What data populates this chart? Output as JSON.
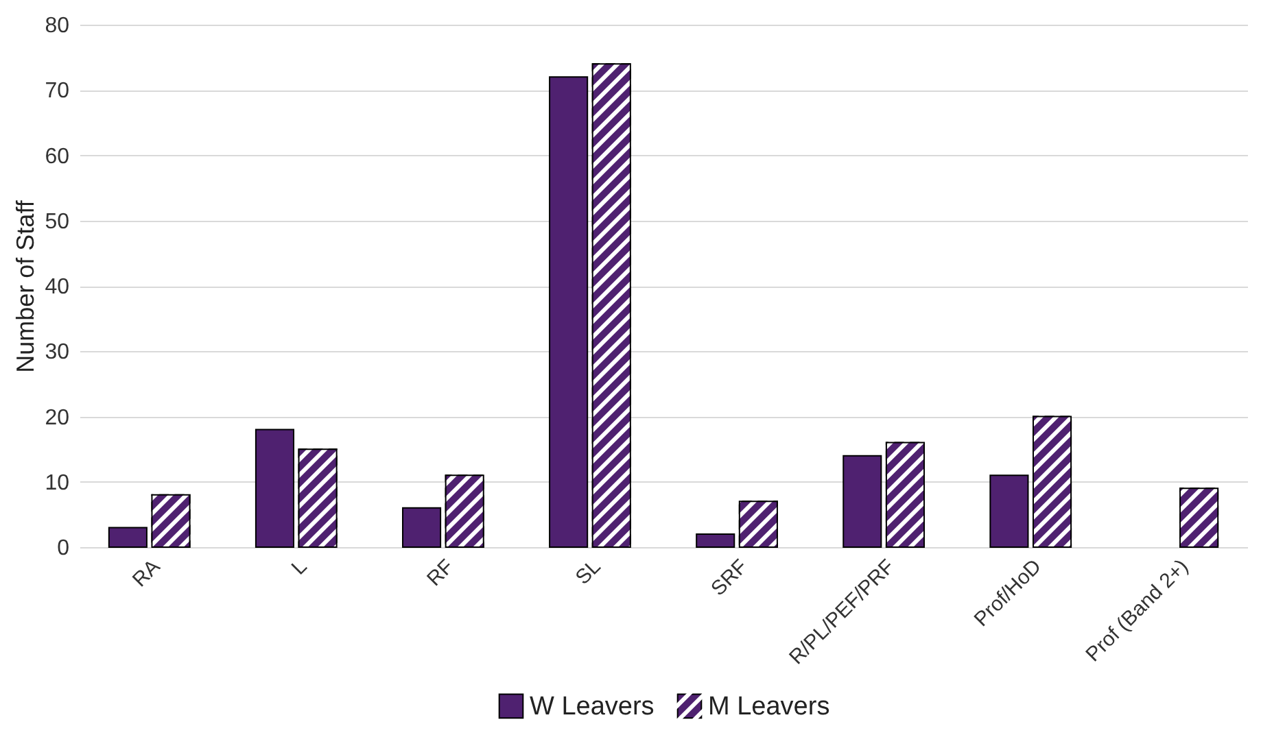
{
  "chart_data": {
    "type": "bar",
    "ylabel": "Number of Staff",
    "categories": [
      "RA",
      "L",
      "RF",
      "SL",
      "SRF",
      "R/PL/PEF/PRF",
      "Prof/HoD",
      "Prof (Band 2+)"
    ],
    "series": [
      {
        "name": "W Leavers",
        "color": "#4f2170",
        "values": [
          3,
          18,
          6,
          72,
          2,
          14,
          11,
          null
        ]
      },
      {
        "name": "M Leavers",
        "color": "#4f2170",
        "values": [
          8,
          15,
          11,
          74,
          7,
          16,
          20,
          9
        ]
      }
    ],
    "ylim": [
      0,
      80
    ],
    "yticks": [
      0,
      10,
      20,
      30,
      40,
      50,
      60,
      70,
      80
    ],
    "grid": "y",
    "legend": "bottom"
  }
}
